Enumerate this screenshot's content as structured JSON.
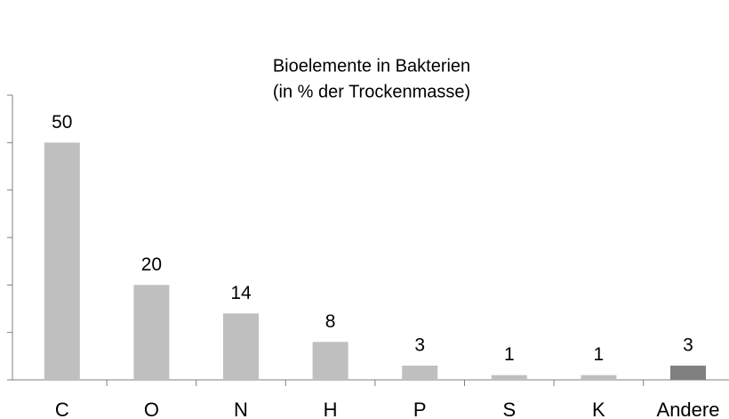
{
  "chart_data": {
    "type": "bar",
    "title": "Bioelemente in Bakterien",
    "subtitle": "(in % der Trockenmasse)",
    "categories": [
      "C",
      "O",
      "N",
      "H",
      "P",
      "S",
      "K",
      "Andere"
    ],
    "values": [
      50,
      20,
      14,
      8,
      3,
      1,
      1,
      3
    ],
    "colors": [
      "#bfbfbf",
      "#bfbfbf",
      "#bfbfbf",
      "#bfbfbf",
      "#bfbfbf",
      "#bfbfbf",
      "#bfbfbf",
      "#808080"
    ],
    "ylim": [
      0,
      60
    ],
    "yticks": [
      0,
      10,
      20,
      30,
      40,
      50,
      60
    ],
    "grid": false
  }
}
